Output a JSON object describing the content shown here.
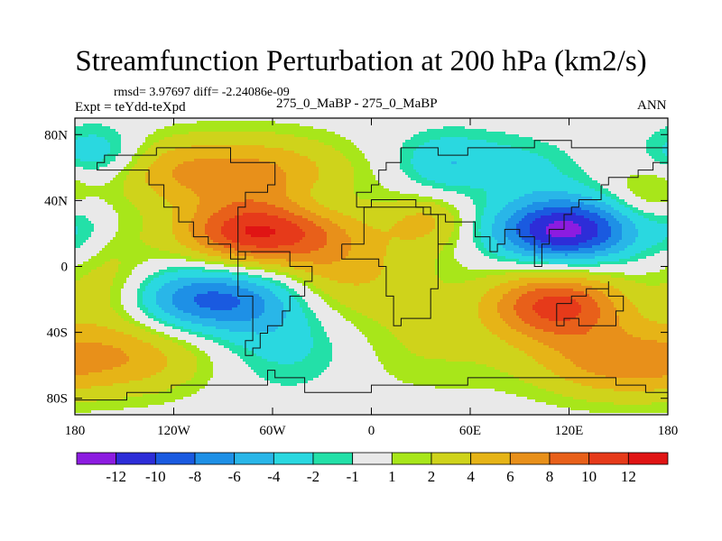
{
  "chart_data": {
    "type": "contour-map",
    "title": "Streamfunction Perturbation at 200 hPa (km2/s)",
    "stats": "rmsd= 3.97697 diff= -2.24086e-09",
    "expt_label": "Expt = teYdd-teXpd",
    "case_label": "275_0_MaBP - 275_0_MaBP",
    "season": "ANN",
    "x_ticks": [
      {
        "value": -180,
        "label": "180"
      },
      {
        "value": -120,
        "label": "120W"
      },
      {
        "value": -60,
        "label": "60W"
      },
      {
        "value": 0,
        "label": "0"
      },
      {
        "value": 60,
        "label": "60E"
      },
      {
        "value": 120,
        "label": "120E"
      },
      {
        "value": 180,
        "label": "180"
      }
    ],
    "y_ticks": [
      {
        "value": 80,
        "label": "80N"
      },
      {
        "value": 40,
        "label": "40N"
      },
      {
        "value": 0,
        "label": "0"
      },
      {
        "value": -40,
        "label": "40S"
      },
      {
        "value": -80,
        "label": "80S"
      }
    ],
    "xlim": [
      -180,
      180
    ],
    "ylim": [
      -90,
      90
    ],
    "levels": [
      "-12",
      "-10",
      "-8",
      "-6",
      "-4",
      "-2",
      "-1",
      "1",
      "2",
      "4",
      "6",
      "8",
      "10",
      "12"
    ],
    "colorbar_colors": [
      "#8c1ce0",
      "#2d2dd8",
      "#1a5ae0",
      "#1e90e6",
      "#29b6e8",
      "#2ad8e0",
      "#23e0a8",
      "#e9e9e9",
      "#a8e61a",
      "#cfd31b",
      "#e6b417",
      "#e8901a",
      "#e8601a",
      "#e63a1a",
      "#e01414"
    ],
    "fields": [
      {
        "lon": 35,
        "lat": 28,
        "amp": 4,
        "slon": 18,
        "slat": 12
      },
      {
        "lon": 5,
        "lat": -5,
        "amp": 3,
        "slon": 30,
        "slat": 25
      },
      {
        "lon": 30,
        "lat": -50,
        "amp": 2,
        "slon": 45,
        "slat": 20
      },
      {
        "lon": 170,
        "lat": 45,
        "amp": 3,
        "slon": 18,
        "slat": 12
      },
      {
        "lon": -140,
        "lat": -55,
        "amp": 4.5,
        "slon": 35,
        "slat": 16
      },
      {
        "lon": 140,
        "lat": -55,
        "amp": 4,
        "slon": 35,
        "slat": 16
      },
      {
        "lon": -175,
        "lat": 23,
        "amp": -2,
        "slon": 12,
        "slat": 15
      },
      {
        "lon": 42,
        "lat": 58,
        "amp": -2,
        "slon": 18,
        "slat": 15
      },
      {
        "lon": 100,
        "lat": 57,
        "amp": -1.5,
        "slon": 20,
        "slat": 12
      },
      {
        "lon": -165,
        "lat": 68,
        "amp": -4,
        "slon": 20,
        "slat": 12
      },
      {
        "lon": -72,
        "lat": 20,
        "amp": 11.5,
        "slon": 32,
        "slat": 14
      },
      {
        "lon": 117,
        "lat": 22,
        "amp": -13,
        "slon": 30,
        "slat": 14
      },
      {
        "lon": 112,
        "lat": -23,
        "amp": 10.5,
        "slon": 30,
        "slat": 15
      },
      {
        "lon": -98,
        "lat": -20,
        "amp": -8.5,
        "slon": 35,
        "slat": 14
      },
      {
        "lon": -45,
        "lat": -45,
        "amp": -3.5,
        "slon": 35,
        "slat": 20
      },
      {
        "lon": -28,
        "lat": 5,
        "amp": 3,
        "slon": 22,
        "slat": 30
      },
      {
        "lon": -30,
        "lat": 40,
        "amp": -2,
        "slon": 18,
        "slat": 10
      },
      {
        "lon": -75,
        "lat": 57,
        "amp": 6.5,
        "slon": 40,
        "slat": 16
      },
      {
        "lon": -130,
        "lat": 59,
        "amp": 3,
        "slon": 25,
        "slat": 14
      },
      {
        "lon": 60,
        "lat": 65,
        "amp": -2.5,
        "slon": 30,
        "slat": 12
      },
      {
        "lon": -160,
        "lat": -12,
        "amp": 3.5,
        "slon": 20,
        "slat": 22
      },
      {
        "lon": 160,
        "lat": -62,
        "amp": 3,
        "slon": 35,
        "slat": 15
      }
    ],
    "continent_outlines": [
      [
        [
          -130,
          70
        ],
        [
          -100,
          70
        ],
        [
          -85,
          65
        ],
        [
          -75,
          62
        ],
        [
          -60,
          58
        ],
        [
          -58,
          50
        ],
        [
          -65,
          45
        ],
        [
          -75,
          35
        ],
        [
          -80,
          27
        ],
        [
          -82,
          10
        ],
        [
          -78,
          5
        ],
        [
          -85,
          12
        ],
        [
          -100,
          20
        ],
        [
          -110,
          28
        ],
        [
          -118,
          34
        ],
        [
          -124,
          42
        ],
        [
          -125,
          48
        ],
        [
          -135,
          57
        ],
        [
          -150,
          60
        ],
        [
          -165,
          62
        ],
        [
          -160,
          68
        ],
        [
          -130,
          70
        ]
      ],
      [
        [
          -80,
          10
        ],
        [
          -60,
          8
        ],
        [
          -50,
          0
        ],
        [
          -35,
          -8
        ],
        [
          -40,
          -20
        ],
        [
          -48,
          -28
        ],
        [
          -55,
          -35
        ],
        [
          -62,
          -40
        ],
        [
          -68,
          -50
        ],
        [
          -72,
          -55
        ],
        [
          -75,
          -45
        ],
        [
          -72,
          -30
        ],
        [
          -70,
          -18
        ],
        [
          -80,
          -5
        ],
        [
          -80,
          10
        ]
      ],
      [
        [
          -17,
          15
        ],
        [
          -5,
          36
        ],
        [
          10,
          37
        ],
        [
          32,
          32
        ],
        [
          42,
          12
        ],
        [
          51,
          12
        ],
        [
          42,
          -2
        ],
        [
          40,
          -15
        ],
        [
          35,
          -30
        ],
        [
          20,
          -35
        ],
        [
          13,
          -20
        ],
        [
          10,
          -2
        ],
        [
          5,
          5
        ],
        [
          -8,
          5
        ],
        [
          -17,
          15
        ]
      ],
      [
        [
          -10,
          36
        ],
        [
          -9,
          43
        ],
        [
          0,
          49
        ],
        [
          5,
          58
        ],
        [
          10,
          62
        ],
        [
          20,
          70
        ],
        [
          40,
          68
        ],
        [
          60,
          72
        ],
        [
          80,
          73
        ],
        [
          100,
          76
        ],
        [
          120,
          73
        ],
        [
          140,
          72
        ],
        [
          160,
          70
        ],
        [
          178,
          65
        ],
        [
          170,
          60
        ],
        [
          160,
          55
        ],
        [
          145,
          50
        ],
        [
          140,
          42
        ],
        [
          128,
          38
        ],
        [
          120,
          30
        ],
        [
          118,
          22
        ],
        [
          108,
          15
        ],
        [
          104,
          2
        ],
        [
          100,
          8
        ],
        [
          97,
          16
        ],
        [
          90,
          22
        ],
        [
          80,
          12
        ],
        [
          78,
          8
        ],
        [
          73,
          20
        ],
        [
          65,
          25
        ],
        [
          57,
          25
        ],
        [
          50,
          28
        ],
        [
          45,
          30
        ],
        [
          36,
          36
        ],
        [
          27,
          40
        ],
        [
          10,
          40
        ],
        [
          0,
          38
        ],
        [
          -10,
          36
        ]
      ],
      [
        [
          114,
          -22
        ],
        [
          120,
          -18
        ],
        [
          130,
          -12
        ],
        [
          137,
          -12
        ],
        [
          142,
          -11
        ],
        [
          146,
          -18
        ],
        [
          153,
          -25
        ],
        [
          150,
          -37
        ],
        [
          145,
          -38
        ],
        [
          138,
          -34
        ],
        [
          128,
          -32
        ],
        [
          115,
          -34
        ],
        [
          114,
          -22
        ]
      ],
      [
        [
          -180,
          -80
        ],
        [
          -150,
          -78
        ],
        [
          -120,
          -74
        ],
        [
          -90,
          -72
        ],
        [
          -62,
          -65
        ],
        [
          -58,
          -68
        ],
        [
          -40,
          -76
        ],
        [
          -20,
          -75
        ],
        [
          0,
          -70
        ],
        [
          30,
          -70
        ],
        [
          60,
          -67
        ],
        [
          90,
          -66
        ],
        [
          120,
          -67
        ],
        [
          150,
          -70
        ],
        [
          165,
          -75
        ],
        [
          180,
          -78
        ]
      ]
    ]
  }
}
